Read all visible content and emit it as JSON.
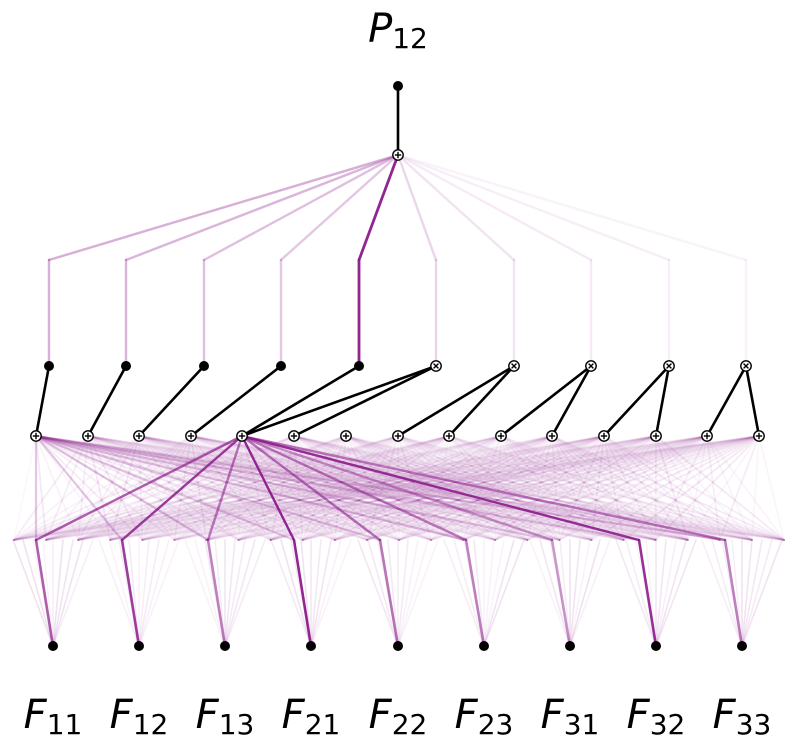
{
  "output": {
    "symbol": "P",
    "subscript": "12"
  },
  "inputs": [
    {
      "symbol": "F",
      "subscript": "11"
    },
    {
      "symbol": "F",
      "subscript": "12"
    },
    {
      "symbol": "F",
      "subscript": "13"
    },
    {
      "symbol": "F",
      "subscript": "21"
    },
    {
      "symbol": "F",
      "subscript": "22"
    },
    {
      "symbol": "F",
      "subscript": "23"
    },
    {
      "symbol": "F",
      "subscript": "31"
    },
    {
      "symbol": "F",
      "subscript": "32"
    },
    {
      "symbol": "F",
      "subscript": "33"
    }
  ],
  "colors": {
    "edge": "#8B1A8B",
    "node": "#000000",
    "background": "#ffffff"
  },
  "node_kinds": {
    "sum": "plus-node",
    "product": "times-node",
    "unit": "dot-node"
  },
  "top_layer_weights": [
    0.35,
    0.32,
    0.28,
    0.24,
    0.95,
    0.18,
    0.12,
    0.09,
    0.07,
    0.05
  ],
  "middle_layer_kinds": [
    "unit",
    "unit",
    "unit",
    "unit",
    "unit",
    "product",
    "product",
    "product",
    "product",
    "product"
  ]
}
